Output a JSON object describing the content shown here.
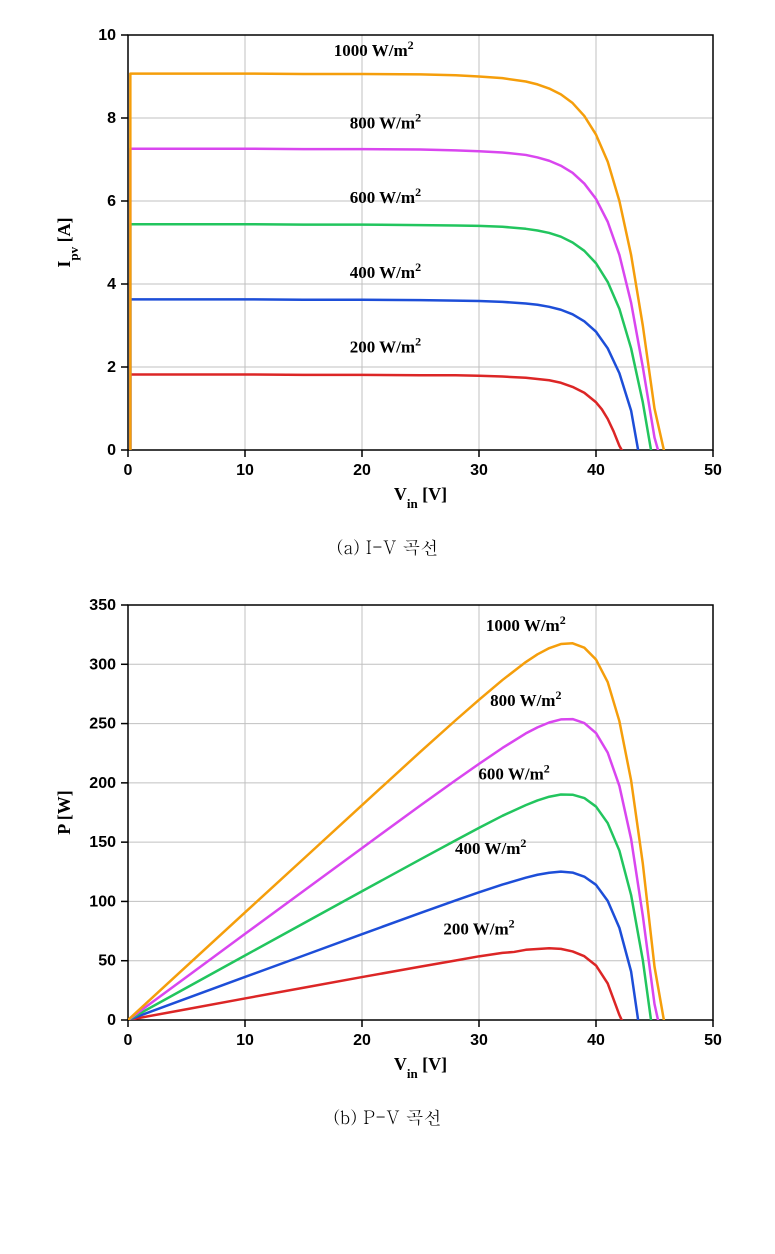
{
  "iv_chart": {
    "type": "line",
    "caption": "(a) I-V 곡선",
    "xlabel": "V_in [V]",
    "ylabel": "I_pv [A]",
    "xlim": [
      0,
      50
    ],
    "ylim": [
      0,
      10
    ],
    "xtick_step": 10,
    "ytick_step": 2,
    "background_color": "#ffffff",
    "grid_color": "#c0c0c0",
    "tick_color": "#000000",
    "border_color": "#000000",
    "label_fontsize": 18,
    "tick_fontsize": 16,
    "annot_fontsize": 17,
    "line_width": 2.5,
    "series": [
      {
        "label": "200 W/m²",
        "label_html": "200 W/m<tspan baseline-shift='super' font-size='12'>2</tspan>",
        "color": "#dc2626",
        "label_x": 22,
        "label_y": 2.35,
        "points": [
          [
            0.2,
            0
          ],
          [
            0.2,
            1.82
          ],
          [
            5,
            1.82
          ],
          [
            10,
            1.82
          ],
          [
            15,
            1.81
          ],
          [
            20,
            1.81
          ],
          [
            25,
            1.8
          ],
          [
            28,
            1.8
          ],
          [
            30,
            1.79
          ],
          [
            32,
            1.77
          ],
          [
            34,
            1.74
          ],
          [
            35,
            1.71
          ],
          [
            36,
            1.68
          ],
          [
            37,
            1.62
          ],
          [
            38,
            1.52
          ],
          [
            39,
            1.38
          ],
          [
            40,
            1.15
          ],
          [
            40.5,
            0.98
          ],
          [
            41,
            0.75
          ],
          [
            41.5,
            0.45
          ],
          [
            42,
            0.1
          ],
          [
            42.2,
            0
          ]
        ]
      },
      {
        "label": "400 W/m²",
        "label_html": "400 W/m<tspan baseline-shift='super' font-size='12'>2</tspan>",
        "color": "#1d4ed8",
        "label_x": 22,
        "label_y": 4.15,
        "points": [
          [
            0.2,
            0
          ],
          [
            0.2,
            3.63
          ],
          [
            5,
            3.63
          ],
          [
            10,
            3.63
          ],
          [
            15,
            3.62
          ],
          [
            20,
            3.62
          ],
          [
            25,
            3.61
          ],
          [
            28,
            3.6
          ],
          [
            30,
            3.59
          ],
          [
            32,
            3.57
          ],
          [
            34,
            3.53
          ],
          [
            35,
            3.5
          ],
          [
            36,
            3.45
          ],
          [
            37,
            3.38
          ],
          [
            38,
            3.27
          ],
          [
            39,
            3.1
          ],
          [
            40,
            2.85
          ],
          [
            41,
            2.45
          ],
          [
            42,
            1.85
          ],
          [
            43,
            0.95
          ],
          [
            43.6,
            0
          ]
        ]
      },
      {
        "label": "600 W/m²",
        "label_html": "600 W/m<tspan baseline-shift='super' font-size='12'>2</tspan>",
        "color": "#22c55e",
        "label_x": 22,
        "label_y": 5.95,
        "points": [
          [
            0.2,
            0
          ],
          [
            0.2,
            5.44
          ],
          [
            5,
            5.44
          ],
          [
            10,
            5.44
          ],
          [
            15,
            5.43
          ],
          [
            20,
            5.43
          ],
          [
            25,
            5.42
          ],
          [
            28,
            5.41
          ],
          [
            30,
            5.4
          ],
          [
            32,
            5.38
          ],
          [
            34,
            5.33
          ],
          [
            35,
            5.29
          ],
          [
            36,
            5.23
          ],
          [
            37,
            5.14
          ],
          [
            38,
            5.0
          ],
          [
            39,
            4.8
          ],
          [
            40,
            4.5
          ],
          [
            41,
            4.05
          ],
          [
            42,
            3.4
          ],
          [
            43,
            2.45
          ],
          [
            44,
            1.15
          ],
          [
            44.7,
            0
          ]
        ]
      },
      {
        "label": "800 W/m²",
        "label_html": "800 W/m<tspan baseline-shift='super' font-size='12'>2</tspan>",
        "color": "#d946ef",
        "label_x": 22,
        "label_y": 7.75,
        "points": [
          [
            0.2,
            0
          ],
          [
            0.2,
            7.26
          ],
          [
            5,
            7.26
          ],
          [
            10,
            7.26
          ],
          [
            15,
            7.25
          ],
          [
            20,
            7.25
          ],
          [
            25,
            7.24
          ],
          [
            28,
            7.22
          ],
          [
            30,
            7.2
          ],
          [
            32,
            7.17
          ],
          [
            34,
            7.11
          ],
          [
            35,
            7.05
          ],
          [
            36,
            6.97
          ],
          [
            37,
            6.85
          ],
          [
            38,
            6.68
          ],
          [
            39,
            6.42
          ],
          [
            40,
            6.05
          ],
          [
            41,
            5.5
          ],
          [
            42,
            4.7
          ],
          [
            43,
            3.55
          ],
          [
            44,
            2.0
          ],
          [
            45,
            0.3
          ],
          [
            45.3,
            0
          ]
        ]
      },
      {
        "label": "1000 W/m²",
        "label_html": "1000 W/m<tspan baseline-shift='super' font-size='12'>2</tspan>",
        "color": "#f59e0b",
        "label_x": 21,
        "label_y": 9.5,
        "points": [
          [
            0.2,
            0
          ],
          [
            0.2,
            9.07
          ],
          [
            5,
            9.07
          ],
          [
            10,
            9.07
          ],
          [
            15,
            9.06
          ],
          [
            20,
            9.06
          ],
          [
            25,
            9.05
          ],
          [
            28,
            9.03
          ],
          [
            30,
            9.0
          ],
          [
            32,
            8.96
          ],
          [
            34,
            8.88
          ],
          [
            35,
            8.81
          ],
          [
            36,
            8.71
          ],
          [
            37,
            8.57
          ],
          [
            38,
            8.36
          ],
          [
            39,
            8.05
          ],
          [
            40,
            7.6
          ],
          [
            41,
            6.95
          ],
          [
            42,
            6.0
          ],
          [
            43,
            4.7
          ],
          [
            44,
            3.0
          ],
          [
            45,
            1.0
          ],
          [
            45.8,
            0
          ]
        ]
      }
    ]
  },
  "pv_chart": {
    "type": "line",
    "caption": "(b) P-V 곡선",
    "xlabel": "V_in [V]",
    "ylabel": "P [W]",
    "xlim": [
      0,
      50
    ],
    "ylim": [
      0,
      350
    ],
    "xtick_step": 10,
    "ytick_step": 50,
    "background_color": "#ffffff",
    "grid_color": "#c0c0c0",
    "tick_color": "#000000",
    "border_color": "#000000",
    "label_fontsize": 18,
    "tick_fontsize": 16,
    "annot_fontsize": 17,
    "line_width": 2.5,
    "series": [
      {
        "label": "200 W/m²",
        "label_html": "200 W/m<tspan baseline-shift='super' font-size='12'>2</tspan>",
        "color": "#dc2626",
        "label_x": 30,
        "label_y": 72,
        "points": [
          [
            0,
            0
          ],
          [
            5,
            9.1
          ],
          [
            10,
            18.2
          ],
          [
            15,
            27.2
          ],
          [
            20,
            36.2
          ],
          [
            25,
            45.0
          ],
          [
            28,
            50.2
          ],
          [
            30,
            53.7
          ],
          [
            32,
            56.6
          ],
          [
            33,
            57.4
          ],
          [
            34,
            59.2
          ],
          [
            35,
            59.9
          ],
          [
            36,
            60.5
          ],
          [
            37,
            60.0
          ],
          [
            38,
            57.8
          ],
          [
            39,
            53.8
          ],
          [
            40,
            46.0
          ],
          [
            41,
            30.8
          ],
          [
            42,
            4.2
          ],
          [
            42.2,
            0
          ]
        ]
      },
      {
        "label": "400 W/m²",
        "label_html": "400 W/m<tspan baseline-shift='super' font-size='12'>2</tspan>",
        "color": "#1d4ed8",
        "label_x": 31,
        "label_y": 140,
        "points": [
          [
            0,
            0
          ],
          [
            5,
            18.2
          ],
          [
            10,
            36.3
          ],
          [
            15,
            54.3
          ],
          [
            20,
            72.4
          ],
          [
            25,
            90.3
          ],
          [
            28,
            100.8
          ],
          [
            30,
            107.7
          ],
          [
            32,
            114.2
          ],
          [
            34,
            120.0
          ],
          [
            35,
            122.5
          ],
          [
            36,
            124.2
          ],
          [
            37,
            125.1
          ],
          [
            38,
            124.3
          ],
          [
            39,
            120.9
          ],
          [
            40,
            114.0
          ],
          [
            41,
            100.5
          ],
          [
            42,
            77.7
          ],
          [
            43,
            40.9
          ],
          [
            43.6,
            0
          ]
        ]
      },
      {
        "label": "600 W/m²",
        "label_html": "600 W/m<tspan baseline-shift='super' font-size='12'>2</tspan>",
        "color": "#22c55e",
        "label_x": 33,
        "label_y": 203,
        "points": [
          [
            0,
            0
          ],
          [
            5,
            27.2
          ],
          [
            10,
            54.4
          ],
          [
            15,
            81.5
          ],
          [
            20,
            108.6
          ],
          [
            25,
            135.5
          ],
          [
            28,
            151.5
          ],
          [
            30,
            162.0
          ],
          [
            32,
            172.2
          ],
          [
            34,
            181.2
          ],
          [
            35,
            185.2
          ],
          [
            36,
            188.3
          ],
          [
            37,
            190.2
          ],
          [
            38,
            190.0
          ],
          [
            39,
            187.2
          ],
          [
            40,
            180.0
          ],
          [
            41,
            166.1
          ],
          [
            42,
            142.8
          ],
          [
            43,
            105.4
          ],
          [
            44,
            50.6
          ],
          [
            44.7,
            0
          ]
        ]
      },
      {
        "label": "800 W/m²",
        "label_html": "800 W/m<tspan baseline-shift='super' font-size='12'>2</tspan>",
        "color": "#d946ef",
        "label_x": 34,
        "label_y": 265,
        "points": [
          [
            0,
            0
          ],
          [
            5,
            36.3
          ],
          [
            10,
            72.6
          ],
          [
            15,
            108.8
          ],
          [
            20,
            145.0
          ],
          [
            25,
            181.0
          ],
          [
            28,
            202.2
          ],
          [
            30,
            216.0
          ],
          [
            32,
            229.4
          ],
          [
            34,
            241.7
          ],
          [
            35,
            246.8
          ],
          [
            36,
            250.9
          ],
          [
            37,
            253.5
          ],
          [
            38,
            253.8
          ],
          [
            39,
            250.4
          ],
          [
            40,
            242.0
          ],
          [
            41,
            225.5
          ],
          [
            42,
            197.4
          ],
          [
            43,
            152.7
          ],
          [
            44,
            88.0
          ],
          [
            45,
            13.5
          ],
          [
            45.3,
            0
          ]
        ]
      },
      {
        "label": "1000 W/m²",
        "label_html": "1000 W/m<tspan baseline-shift='super' font-size='12'>2</tspan>",
        "color": "#f59e0b",
        "label_x": 34,
        "label_y": 328,
        "points": [
          [
            0,
            0
          ],
          [
            5,
            45.4
          ],
          [
            10,
            90.7
          ],
          [
            15,
            135.9
          ],
          [
            20,
            181.2
          ],
          [
            25,
            226.3
          ],
          [
            28,
            252.8
          ],
          [
            30,
            270.0
          ],
          [
            32,
            286.7
          ],
          [
            34,
            301.9
          ],
          [
            35,
            308.4
          ],
          [
            36,
            313.6
          ],
          [
            37,
            317.1
          ],
          [
            38,
            317.7
          ],
          [
            39,
            314.0
          ],
          [
            40,
            304.0
          ],
          [
            41,
            285.0
          ],
          [
            42,
            252.0
          ],
          [
            43,
            202.1
          ],
          [
            44,
            132.0
          ],
          [
            45,
            45.0
          ],
          [
            45.8,
            0
          ]
        ]
      }
    ]
  }
}
